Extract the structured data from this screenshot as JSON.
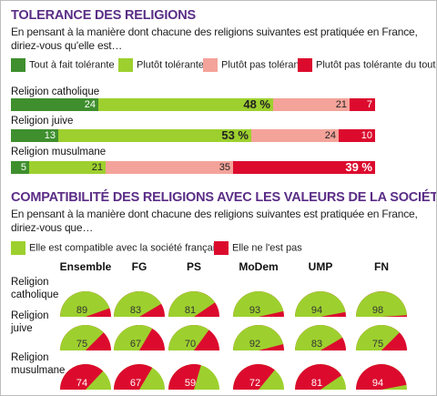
{
  "section1": {
    "title": "TOLERANCE DES RELIGIONS",
    "question": "En pensant à la manière dont chacune des religions suivantes est pratiquée en France, diriez-vous qu'elle est…",
    "legend": [
      {
        "label": "Tout à fait tolérante",
        "color": "#3f8f2e"
      },
      {
        "label": "Plutôt tolérante",
        "color": "#9dd02e"
      },
      {
        "label": "Plutôt pas tolérante",
        "color": "#f4a39a"
      },
      {
        "label": "Plutôt pas tolérante du tout",
        "color": "#dc0b2e"
      }
    ]
  },
  "section2": {
    "title": "COMPATIBILITÉ DES RELIGIONS AVEC LES VALEURS DE LA SOCIÉTÉ FRANÇAISE",
    "question": "En pensant à la manière dont chacune des religions suivantes est pratiquée en France, diriez-vous que…",
    "legend": [
      {
        "label": "Elle est compatible avec la société française",
        "color": "#9dd02e"
      },
      {
        "label": "Elle ne l'est pas",
        "color": "#dc0b2e"
      }
    ]
  },
  "chart_data": [
    {
      "type": "bar",
      "stacked": true,
      "orientation": "horizontal",
      "title": "TOLERANCE DES RELIGIONS",
      "categories": [
        "Religion catholique",
        "Religion juive",
        "Religion musulmane"
      ],
      "series": [
        {
          "name": "Tout à fait tolérante",
          "color": "#3f8f2e",
          "values": [
            24,
            13,
            5
          ],
          "labels": [
            "24",
            "13",
            "5"
          ]
        },
        {
          "name": "Plutôt tolérante",
          "color": "#9dd02e",
          "values": [
            48,
            53,
            21
          ],
          "labels": [
            "48 %",
            "53 %",
            "21"
          ]
        },
        {
          "name": "Plutôt pas tolérante",
          "color": "#f4a39a",
          "values": [
            21,
            24,
            35
          ],
          "labels": [
            "21",
            "24",
            "35"
          ]
        },
        {
          "name": "Plutôt pas tolérante du tout",
          "color": "#dc0b2e",
          "values": [
            7,
            10,
            39
          ],
          "labels": [
            "7",
            "10",
            "39 %"
          ]
        }
      ],
      "highlight": [
        1,
        1,
        3
      ]
    },
    {
      "type": "pie",
      "semicircle": true,
      "title": "COMPATIBILITÉ DES RELIGIONS AVEC LES VALEURS DE LA SOCIÉTÉ FRANÇAISE",
      "columns": [
        "Ensemble",
        "FG",
        "PS",
        "MoDem",
        "UMP",
        "FN"
      ],
      "rows": [
        {
          "label": "Religion catholique",
          "series": "Elle est compatible avec la société française",
          "values": [
            89,
            83,
            81,
            93,
            94,
            98
          ]
        },
        {
          "label": "Religion juive",
          "series": "Elle est compatible avec la société française",
          "values": [
            75,
            67,
            70,
            92,
            83,
            75
          ]
        },
        {
          "label": "Religion musulmane",
          "series": "Elle ne l'est pas",
          "values": [
            74,
            67,
            59,
            72,
            81,
            94
          ]
        }
      ],
      "colors": {
        "compatible": "#9dd02e",
        "not_compatible": "#dc0b2e"
      }
    }
  ]
}
